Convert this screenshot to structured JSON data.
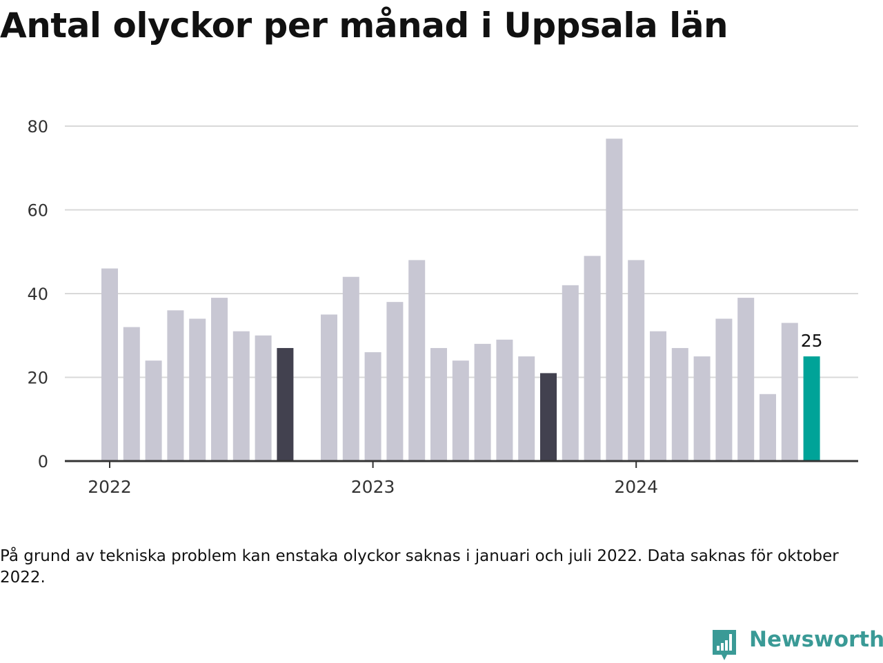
{
  "title": "Antal olyckor per månad i Uppsala län",
  "note": "På grund av tekniska problem kan enstaka olyckor saknas i januari och juli 2022. Data saknas för oktober 2022.",
  "brand": {
    "name": "Newsworthy",
    "icon": "newsworthy-logo-icon",
    "color": "#3a9a96"
  },
  "colors": {
    "default_bar": "#c8c7d3",
    "highlight_bar": "#42414f",
    "latest_bar": "#00a398",
    "grid": "#d9d9d9",
    "axis": "#333333"
  },
  "chart_data": {
    "type": "bar",
    "x": [
      "2022-01",
      "2022-02",
      "2022-03",
      "2022-04",
      "2022-05",
      "2022-06",
      "2022-07",
      "2022-08",
      "2022-09",
      "2022-10",
      "2022-11",
      "2022-12",
      "2023-01",
      "2023-02",
      "2023-03",
      "2023-04",
      "2023-05",
      "2023-06",
      "2023-07",
      "2023-08",
      "2023-09",
      "2023-10",
      "2023-11",
      "2023-12",
      "2024-01",
      "2024-02",
      "2024-03",
      "2024-04",
      "2024-05",
      "2024-06",
      "2024-07",
      "2024-08",
      "2024-09"
    ],
    "values": [
      46,
      32,
      24,
      36,
      34,
      39,
      31,
      30,
      27,
      null,
      35,
      44,
      26,
      38,
      48,
      27,
      24,
      28,
      29,
      25,
      21,
      42,
      49,
      77,
      48,
      31,
      27,
      25,
      34,
      39,
      16,
      33,
      25
    ],
    "highlight": [
      "2022-09",
      "2023-09"
    ],
    "latest": "2024-09",
    "data_labels": [
      {
        "x": "2024-09",
        "text": "25"
      }
    ],
    "xticks": [
      {
        "x": "2022-01",
        "label": "2022"
      },
      {
        "x": "2023-01",
        "label": "2023"
      },
      {
        "x": "2024-01",
        "label": "2024"
      }
    ],
    "yticks": [
      0,
      20,
      40,
      60,
      80
    ],
    "ylim": [
      0,
      80
    ],
    "grid": true,
    "xlabel": "",
    "ylabel": ""
  }
}
